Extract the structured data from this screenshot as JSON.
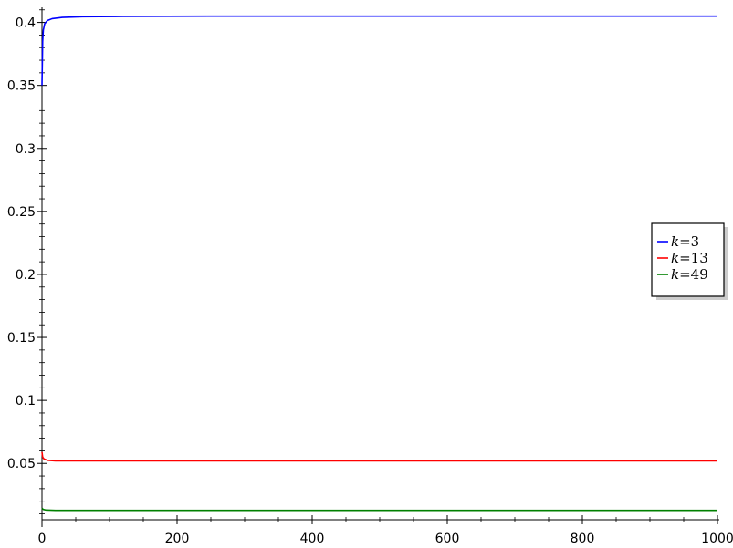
{
  "chart_data": {
    "type": "line",
    "title": "",
    "xlabel": "",
    "ylabel": "",
    "xlim": [
      0,
      1000
    ],
    "ylim": [
      0.0053,
      0.412
    ],
    "x_ticks": [
      0,
      200,
      400,
      600,
      800,
      1000
    ],
    "x_tick_labels": [
      "0",
      "200",
      "400",
      "600",
      "800",
      "1000"
    ],
    "y_ticks": [
      0.05,
      0.1,
      0.15,
      0.2,
      0.25,
      0.3,
      0.35,
      0.4
    ],
    "y_tick_labels": [
      "0.05",
      "0.1",
      "0.15",
      "0.2",
      "0.25",
      "0.3",
      "0.35",
      "0.4"
    ],
    "grid": false,
    "legend_position": "right",
    "series": [
      {
        "name": "k = 3",
        "legend_var": "k",
        "legend_op": "=",
        "legend_val": "3",
        "color": "#0000ff",
        "points": [
          [
            0,
            0.35
          ],
          [
            1,
            0.385
          ],
          [
            2,
            0.394
          ],
          [
            4,
            0.399
          ],
          [
            8,
            0.4015
          ],
          [
            15,
            0.403
          ],
          [
            30,
            0.404
          ],
          [
            60,
            0.4045
          ],
          [
            120,
            0.4048
          ],
          [
            250,
            0.405
          ],
          [
            1000,
            0.405
          ]
        ]
      },
      {
        "name": "k = 13",
        "legend_var": "k",
        "legend_op": "=",
        "legend_val": "13",
        "color": "#ff0000",
        "points": [
          [
            0,
            0.059
          ],
          [
            1,
            0.055
          ],
          [
            3,
            0.0535
          ],
          [
            8,
            0.0525
          ],
          [
            20,
            0.052
          ],
          [
            60,
            0.052
          ],
          [
            1000,
            0.052
          ]
        ]
      },
      {
        "name": "k = 49",
        "legend_var": "k",
        "legend_op": "=",
        "legend_val": "49",
        "color": "#008000",
        "points": [
          [
            0,
            0.0145
          ],
          [
            2,
            0.0135
          ],
          [
            6,
            0.013
          ],
          [
            20,
            0.0128
          ],
          [
            1000,
            0.0128
          ]
        ]
      }
    ]
  }
}
